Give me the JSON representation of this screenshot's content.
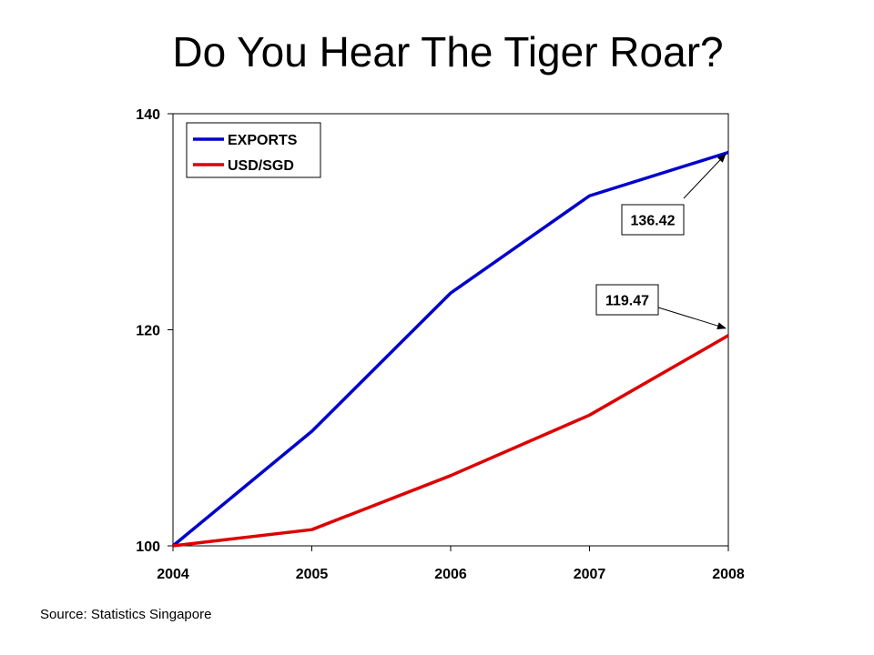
{
  "slide": {
    "title": "Do You Hear The Tiger Roar?",
    "source": "Source: Statistics Singapore"
  },
  "chart_data": {
    "type": "line",
    "title": "",
    "xlabel": "",
    "ylabel": "",
    "x": [
      "2004",
      "2005",
      "2006",
      "2007",
      "2008"
    ],
    "ylim": [
      100,
      140
    ],
    "yticks": [
      100,
      120,
      140
    ],
    "grid": false,
    "legend_position": "top-left",
    "series": [
      {
        "name": "EXPORTS",
        "color": "#0000cc",
        "values": [
          100,
          110.6,
          123.4,
          132.4,
          136.42
        ]
      },
      {
        "name": "USD/SGD",
        "color": "#dd0000",
        "values": [
          100,
          101.5,
          106.5,
          112.1,
          119.47
        ]
      }
    ],
    "annotations": [
      {
        "series": "EXPORTS",
        "point": "2008",
        "label": "136.42"
      },
      {
        "series": "USD/SGD",
        "point": "2008",
        "label": "119.47"
      }
    ]
  }
}
